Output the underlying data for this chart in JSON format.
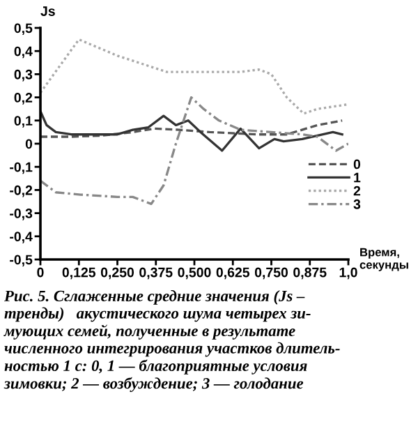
{
  "chart_data": {
    "type": "line",
    "ylabel": "Js",
    "xlabel": "Время,\nсекунды",
    "xlim": [
      0,
      1.0
    ],
    "ylim": [
      -0.5,
      0.5
    ],
    "xticks": [
      {
        "value": 0,
        "label": "0"
      },
      {
        "value": 0.125,
        "label": "0,125"
      },
      {
        "value": 0.25,
        "label": "0,250"
      },
      {
        "value": 0.375,
        "label": "0,375"
      },
      {
        "value": 0.5,
        "label": "0,500"
      },
      {
        "value": 0.625,
        "label": "0,625"
      },
      {
        "value": 0.75,
        "label": "0,750"
      },
      {
        "value": 0.875,
        "label": "0,875"
      },
      {
        "value": 1.0,
        "label": "1,0"
      }
    ],
    "yticks": [
      {
        "value": 0.5,
        "label": "0,5"
      },
      {
        "value": 0.4,
        "label": "0,4"
      },
      {
        "value": 0.3,
        "label": "0,3"
      },
      {
        "value": 0.2,
        "label": "0,2"
      },
      {
        "value": 0.1,
        "label": "0,1"
      },
      {
        "value": 0,
        "label": "0"
      },
      {
        "value": -0.1,
        "label": "-0,1"
      },
      {
        "value": -0.2,
        "label": "-0,2"
      },
      {
        "value": -0.3,
        "label": "-0,3"
      },
      {
        "value": -0.4,
        "label": "-0,4"
      },
      {
        "value": -0.5,
        "label": "-0,5"
      }
    ],
    "grid": false,
    "legend": "right",
    "marker": "none",
    "series": [
      {
        "name": "0",
        "color": "#555555",
        "line_style": "dashed",
        "x": [
          0,
          0.1,
          0.2,
          0.3,
          0.37,
          0.45,
          0.55,
          0.7,
          0.8,
          0.9,
          0.98
        ],
        "values": [
          0.03,
          0.03,
          0.035,
          0.05,
          0.065,
          0.06,
          0.05,
          0.04,
          0.04,
          0.08,
          0.1
        ]
      },
      {
        "name": "1",
        "color": "#333333",
        "line_style": "solid",
        "x": [
          0,
          0.02,
          0.05,
          0.1,
          0.25,
          0.3,
          0.35,
          0.4,
          0.44,
          0.48,
          0.52,
          0.59,
          0.65,
          0.71,
          0.76,
          0.79,
          0.85,
          0.95,
          0.98
        ],
        "values": [
          0.14,
          0.08,
          0.05,
          0.04,
          0.04,
          0.06,
          0.07,
          0.12,
          0.08,
          0.1,
          0.05,
          -0.03,
          0.065,
          -0.02,
          0.02,
          0.01,
          0.02,
          0.05,
          0.04
        ]
      },
      {
        "name": "2",
        "color": "#aaaaaa",
        "line_style": "dotted",
        "x": [
          0,
          0.125,
          0.25,
          0.41,
          0.55,
          0.65,
          0.71,
          0.75,
          0.8,
          0.855,
          0.9,
          1.0
        ],
        "values": [
          0.22,
          0.45,
          0.38,
          0.31,
          0.31,
          0.31,
          0.32,
          0.3,
          0.2,
          0.13,
          0.15,
          0.17
        ]
      },
      {
        "name": "3",
        "color": "#888888",
        "line_style": "dashdot",
        "x": [
          0,
          0.05,
          0.13,
          0.25,
          0.3,
          0.36,
          0.4,
          0.44,
          0.49,
          0.53,
          0.58,
          0.65,
          0.75,
          0.85,
          0.9,
          0.96,
          1.0
        ],
        "values": [
          -0.16,
          -0.21,
          -0.22,
          -0.23,
          -0.23,
          -0.26,
          -0.18,
          0.0,
          0.2,
          0.15,
          0.1,
          0.06,
          0.05,
          0.04,
          0.03,
          -0.03,
          0.0
        ]
      }
    ],
    "annotations": [
      "Рис. 5. Сглаженные средние значения (Js –\nтренды)   акустического шума четырех зи-\nмующих семей, полученные в результате\nчисленного интегрирования участков длитель-\nностью 1 с: 0, 1 — благоприятные условия\nзимовки; 2 — возбуждение; 3 — голодание"
    ]
  }
}
